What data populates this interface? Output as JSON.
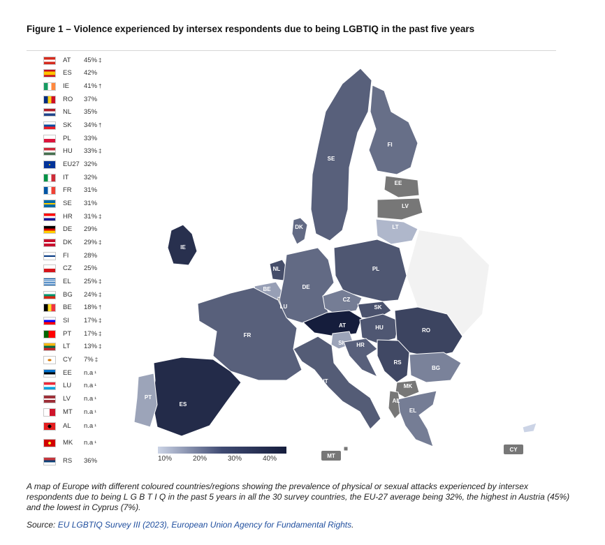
{
  "title": "Figure 1 – Violence experienced by intersex respondents due to being LGBTIQ in the past five years",
  "countries": [
    {
      "code": "AT",
      "value": "45%",
      "mark": "‡"
    },
    {
      "code": "ES",
      "value": "42%",
      "mark": ""
    },
    {
      "code": "IE",
      "value": "41%",
      "mark": "†"
    },
    {
      "code": "RO",
      "value": "37%",
      "mark": ""
    },
    {
      "code": "NL",
      "value": "35%",
      "mark": ""
    },
    {
      "code": "SK",
      "value": "34%",
      "mark": "†"
    },
    {
      "code": "PL",
      "value": "33%",
      "mark": ""
    },
    {
      "code": "HU",
      "value": "33%",
      "mark": "‡"
    },
    {
      "code": "EU27",
      "value": "32%",
      "mark": ""
    },
    {
      "code": "IT",
      "value": "32%",
      "mark": ""
    },
    {
      "code": "FR",
      "value": "31%",
      "mark": ""
    },
    {
      "code": "SE",
      "value": "31%",
      "mark": ""
    },
    {
      "code": "HR",
      "value": "31%",
      "mark": "‡"
    },
    {
      "code": "DE",
      "value": "29%",
      "mark": ""
    },
    {
      "code": "DK",
      "value": "29%",
      "mark": "‡"
    },
    {
      "code": "FI",
      "value": "28%",
      "mark": ""
    },
    {
      "code": "CZ",
      "value": "25%",
      "mark": ""
    },
    {
      "code": "EL",
      "value": "25%",
      "mark": "‡"
    },
    {
      "code": "BG",
      "value": "24%",
      "mark": "‡"
    },
    {
      "code": "BE",
      "value": "18%",
      "mark": "†"
    },
    {
      "code": "SI",
      "value": "17%",
      "mark": "‡"
    },
    {
      "code": "PT",
      "value": "17%",
      "mark": "‡"
    },
    {
      "code": "LT",
      "value": "13%",
      "mark": "‡"
    },
    {
      "code": "CY",
      "value": "7%",
      "mark": "‡"
    },
    {
      "code": "EE",
      "value": "n.a",
      "mark": "¹"
    },
    {
      "code": "LU",
      "value": "n.a",
      "mark": "¹"
    },
    {
      "code": "LV",
      "value": "n.a",
      "mark": "¹"
    },
    {
      "code": "MT",
      "value": "n.a",
      "mark": "¹"
    },
    {
      "code": "AL",
      "value": "n.a",
      "mark": "¹"
    },
    {
      "code": "MK",
      "value": "n.a",
      "mark": "¹"
    },
    {
      "code": "RS",
      "value": "36%",
      "mark": ""
    }
  ],
  "flag_icons": [
    "flag-at-icon",
    "flag-es-icon",
    "flag-ie-icon",
    "flag-ro-icon",
    "flag-nl-icon",
    "flag-sk-icon",
    "flag-pl-icon",
    "flag-hu-icon",
    "flag-eu-icon",
    "flag-it-icon",
    "flag-fr-icon",
    "flag-se-icon",
    "flag-hr-icon",
    "flag-de-icon",
    "flag-dk-icon",
    "flag-fi-icon",
    "flag-cz-icon",
    "flag-el-icon",
    "flag-bg-icon",
    "flag-be-icon",
    "flag-si-icon",
    "flag-pt-icon",
    "flag-lt-icon",
    "flag-cy-icon",
    "flag-ee-icon",
    "flag-lu-icon",
    "flag-lv-icon",
    "flag-mt-icon",
    "flag-al-icon",
    "flag-mk-icon",
    "flag-rs-icon"
  ],
  "map_labels": {
    "SE": "SE",
    "FI": "FI",
    "EE": "EE",
    "LV": "LV",
    "LT": "LT",
    "DK": "DK",
    "IE": "IE",
    "NL": "NL",
    "BE": "BE",
    "LU": "LU",
    "DE": "DE",
    "PL": "PL",
    "CZ": "CZ",
    "SK": "SK",
    "AT": "AT",
    "HU": "HU",
    "RO": "RO",
    "FR": "FR",
    "SI": "SI",
    "HR": "HR",
    "RS": "RS",
    "BG": "BG",
    "MK": "MK",
    "AL": "AL",
    "EL": "EL",
    "IT": "IT",
    "ES": "ES",
    "PT": "PT",
    "MT": "MT",
    "CY": "CY"
  },
  "colors": {
    "no_data": "#777777",
    "scale_low": "#ccd4e6",
    "scale_high": "#151d3c"
  },
  "legend": {
    "ticks": [
      "10%",
      "20%",
      "30%",
      "40%"
    ]
  },
  "caption": "A map of Europe with different coloured countries/regions showing the prevalence of physical or sexual attacks experienced by intersex respondents due to being L G B T I Q in the past 5 years in all the 30 survey countries, the EU-27 average being 32%, the highest in Austria (45%) and the lowest in Cyprus (7%).",
  "source": {
    "prefix": "Source: ",
    "link_text": "EU LGBTIQ Survey III (2023), European Union Agency for Fundamental Rights",
    "suffix": "."
  }
}
